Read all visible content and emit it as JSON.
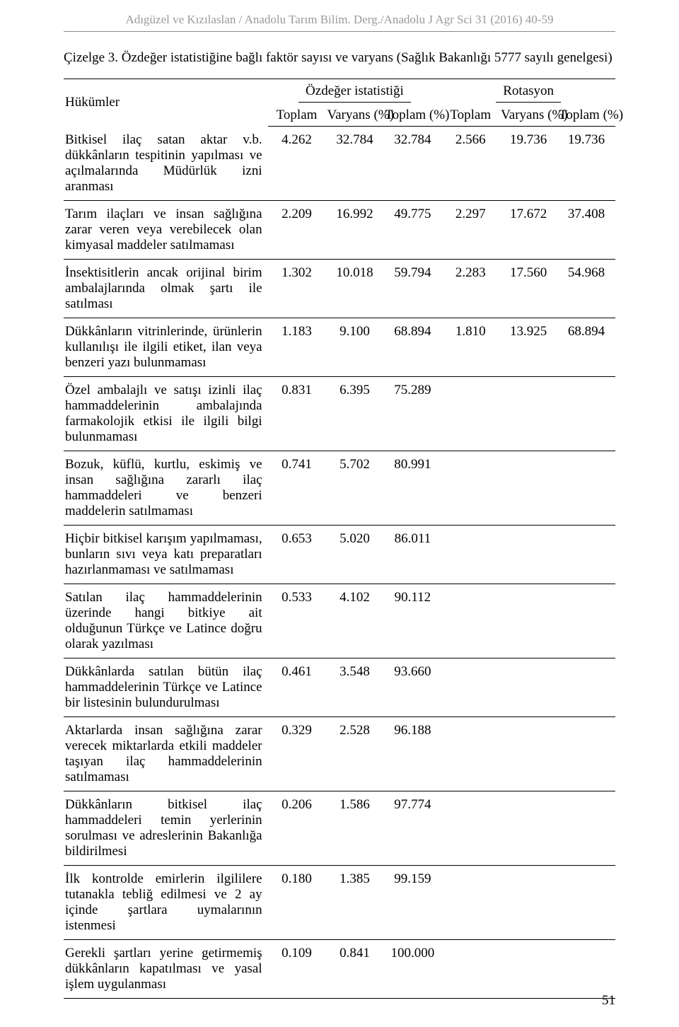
{
  "runningHead": "Adıgüzel ve Kızılaslan / Anadolu Tarım Bilim. Derg./Anadolu J Agr Sci 31 (2016) 40-59",
  "caption": "Çizelge 3. Özdeğer istatistiğine bağlı faktör sayısı ve varyans (Sağlık Bakanlığı 5777 sayılı genelgesi)",
  "pageNumber": "51",
  "table": {
    "rowHeader": "Hükümler",
    "groups": [
      {
        "label": "Özdeğer istatistiği"
      },
      {
        "label": "Rotasyon"
      }
    ],
    "columns": [
      {
        "label": "Toplam"
      },
      {
        "label": "Varyans (%)"
      },
      {
        "label": "Toplam (%)"
      },
      {
        "label": "Toplam"
      },
      {
        "label": "Varyans (%)"
      },
      {
        "label": "Toplam (%)"
      }
    ],
    "rows": [
      {
        "label": "Bitkisel ilaç satan aktar v.b. dükkânların tespitinin yapılması ve açılmalarında Müdürlük izni aranması",
        "v": [
          "4.262",
          "32.784",
          "32.784",
          "2.566",
          "19.736",
          "19.736"
        ]
      },
      {
        "label": "Tarım ilaçları ve insan sağlığına zarar veren veya verebilecek olan kimyasal maddeler satılmaması",
        "v": [
          "2.209",
          "16.992",
          "49.775",
          "2.297",
          "17.672",
          "37.408"
        ]
      },
      {
        "label": "İnsektisitlerin ancak orijinal birim ambalajlarında olmak şartı ile satılması",
        "v": [
          "1.302",
          "10.018",
          "59.794",
          "2.283",
          "17.560",
          "54.968"
        ]
      },
      {
        "label": "Dükkânların vitrinlerinde, ürünlerin kullanılışı ile ilgili etiket, ilan veya benzeri yazı bulunmaması",
        "v": [
          "1.183",
          "9.100",
          "68.894",
          "1.810",
          "13.925",
          "68.894"
        ]
      },
      {
        "label": "Özel ambalajlı ve satışı izinli ilaç hammaddelerinin ambalajında farmakolojik etkisi ile ilgili bilgi bulunmaması",
        "v": [
          "0.831",
          "6.395",
          "75.289",
          "",
          "",
          ""
        ]
      },
      {
        "label": "Bozuk, küflü, kurtlu, eskimiş ve insan sağlığına zararlı ilaç hammaddeleri ve benzeri maddelerin satılmaması",
        "v": [
          "0.741",
          "5.702",
          "80.991",
          "",
          "",
          ""
        ]
      },
      {
        "label": "Hiçbir bitkisel karışım yapılmaması, bunların sıvı veya katı preparatları hazırlanmaması ve satılmaması",
        "v": [
          "0.653",
          "5.020",
          "86.011",
          "",
          "",
          ""
        ]
      },
      {
        "label": "Satılan ilaç hammaddelerinin üzerinde hangi bitkiye ait olduğunun Türkçe ve Latince doğru olarak yazılması",
        "v": [
          "0.533",
          "4.102",
          "90.112",
          "",
          "",
          ""
        ]
      },
      {
        "label": "Dükkânlarda satılan bütün ilaç hammaddelerinin Türkçe ve Latince bir listesinin bulundurulması",
        "v": [
          "0.461",
          "3.548",
          "93.660",
          "",
          "",
          ""
        ]
      },
      {
        "label": "Aktarlarda insan sağlığına zarar verecek miktarlarda etkili maddeler taşıyan ilaç hammaddelerinin satılmaması",
        "v": [
          "0.329",
          "2.528",
          "96.188",
          "",
          "",
          ""
        ]
      },
      {
        "label": "Dükkânların bitkisel ilaç hammaddeleri temin yerlerinin sorulması ve adreslerinin Bakanlığa bildirilmesi",
        "v": [
          "0.206",
          "1.586",
          "97.774",
          "",
          "",
          ""
        ]
      },
      {
        "label": "İlk kontrolde emirlerin ilgililere tutanakla tebliğ edilmesi ve 2 ay içinde şartlara uymalarının istenmesi",
        "v": [
          "0.180",
          "1.385",
          "99.159",
          "",
          "",
          ""
        ]
      },
      {
        "label": "Gerekli şartları yerine getirmemiş dükkânların kapatılması ve yasal işlem uygulanması",
        "v": [
          "0.109",
          "0.841",
          "100.000",
          "",
          "",
          ""
        ]
      }
    ]
  }
}
